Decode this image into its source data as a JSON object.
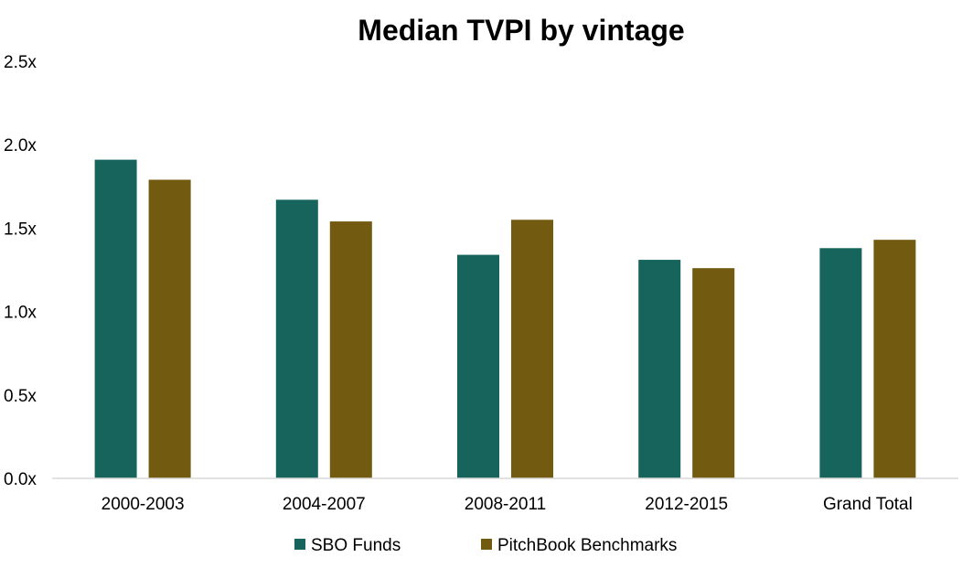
{
  "chart_data": {
    "type": "bar",
    "title": "Median TVPI by vintage",
    "categories": [
      "2000-2003",
      "2004-2007",
      "2008-2011",
      "2012-2015",
      "Grand Total"
    ],
    "series": [
      {
        "name": "SBO Funds",
        "color": "#17645C",
        "values": [
          1.91,
          1.67,
          1.34,
          1.31,
          1.38
        ]
      },
      {
        "name": "PitchBook Benchmarks",
        "color": "#725B10",
        "values": [
          1.79,
          1.54,
          1.55,
          1.26,
          1.43
        ]
      }
    ],
    "ylim": [
      0,
      2.5
    ],
    "yticks": [
      {
        "value": 0.0,
        "label": "0.0x"
      },
      {
        "value": 0.5,
        "label": "0.5x"
      },
      {
        "value": 1.0,
        "label": "1.0x"
      },
      {
        "value": 1.5,
        "label": "1.5x"
      },
      {
        "value": 2.0,
        "label": "2.0x"
      },
      {
        "value": 2.5,
        "label": "2.5x"
      }
    ],
    "xlabel": "",
    "ylabel": "",
    "grid": false,
    "legend": "bottom-center"
  }
}
